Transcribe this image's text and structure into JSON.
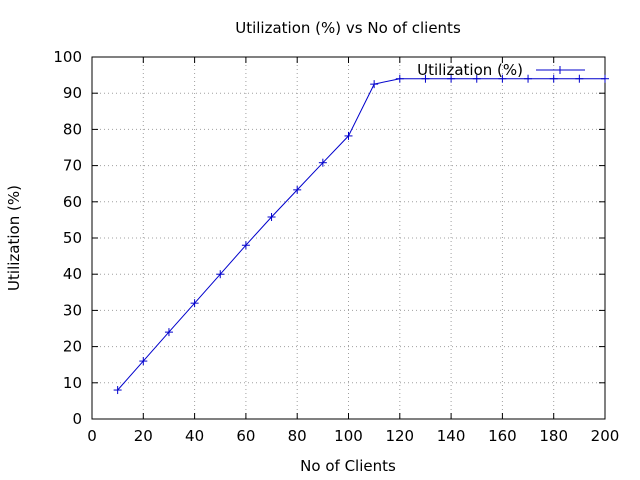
{
  "chart_data": {
    "type": "line",
    "title": "Utilization (%) vs No of clients",
    "xlabel": "No of Clients",
    "ylabel": "Utilization (%)",
    "xlim": [
      0,
      200
    ],
    "ylim": [
      0,
      100
    ],
    "xticks": [
      0,
      20,
      40,
      60,
      80,
      100,
      120,
      140,
      160,
      180,
      200
    ],
    "yticks": [
      0,
      10,
      20,
      30,
      40,
      50,
      60,
      70,
      80,
      90,
      100
    ],
    "grid": true,
    "legend_position": "top-right",
    "series": [
      {
        "name": "Utilization (%)",
        "color": "#0000cc",
        "x": [
          10,
          20,
          30,
          40,
          50,
          60,
          70,
          80,
          90,
          100,
          110,
          120,
          130,
          140,
          150,
          160,
          170,
          180,
          190,
          200
        ],
        "y": [
          8,
          16,
          24,
          32,
          40,
          48,
          55.8,
          63.3,
          70.8,
          78.2,
          92.5,
          94,
          94,
          94,
          94,
          94,
          94,
          94,
          94,
          94
        ]
      }
    ]
  }
}
